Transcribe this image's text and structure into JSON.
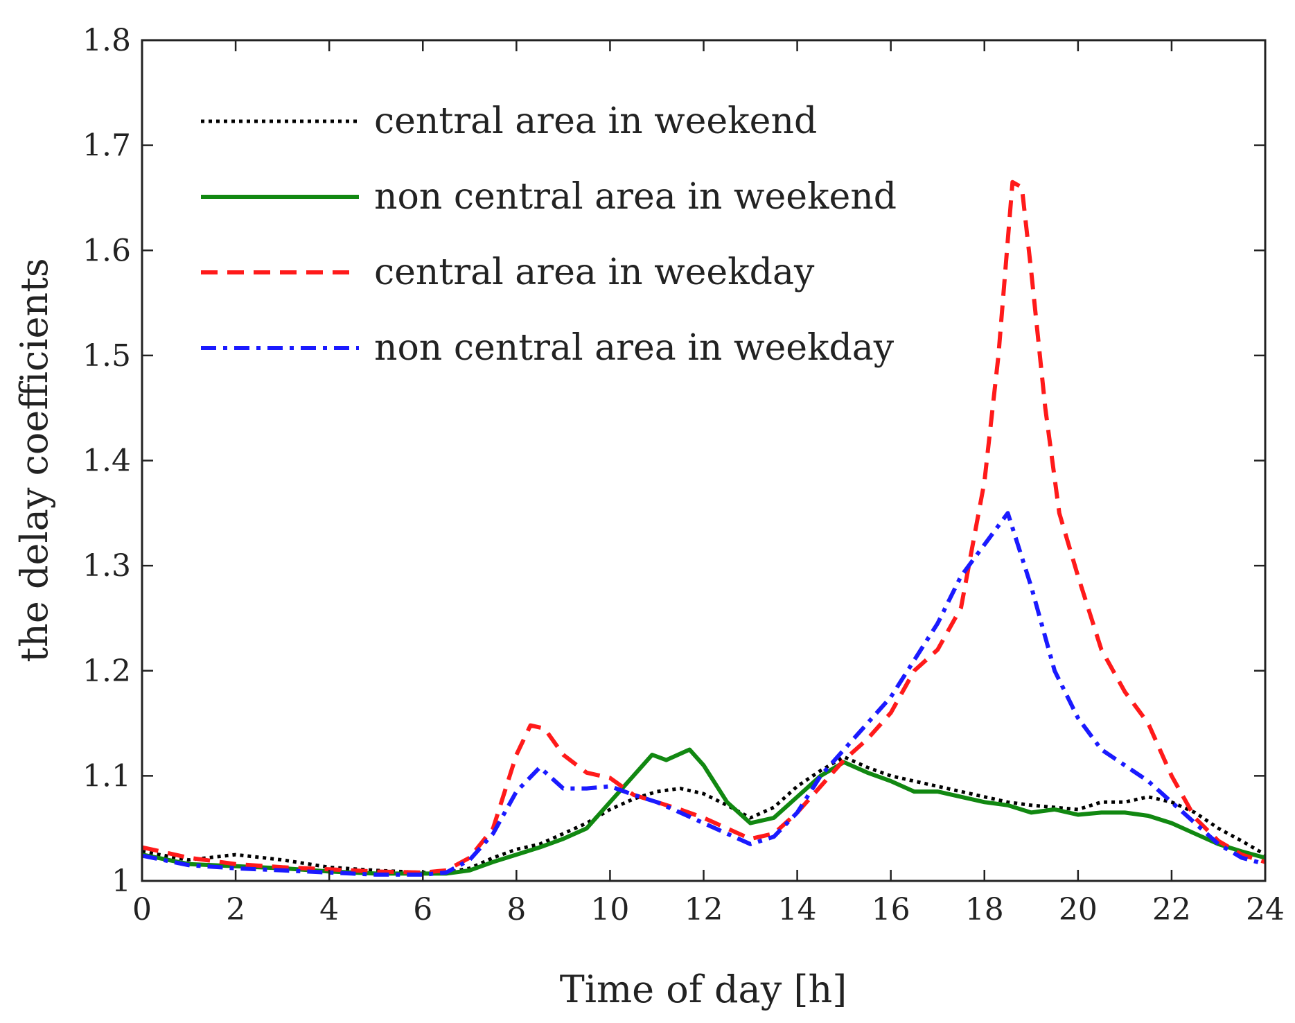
{
  "chart_data": {
    "type": "line",
    "title": "",
    "xlabel": "Time of day [h]",
    "ylabel": "the delay coefficients",
    "xlim": [
      0,
      24
    ],
    "ylim": [
      1,
      1.8
    ],
    "xticks": [
      0,
      2,
      4,
      6,
      8,
      10,
      12,
      14,
      16,
      18,
      20,
      22,
      24
    ],
    "yticks": [
      1,
      1.1,
      1.2,
      1.3,
      1.4,
      1.5,
      1.6,
      1.7,
      1.8
    ],
    "xtick_labels": [
      "0",
      "2",
      "4",
      "6",
      "8",
      "10",
      "12",
      "14",
      "16",
      "18",
      "20",
      "22",
      "24"
    ],
    "ytick_labels": [
      "1",
      "1.1",
      "1.2",
      "1.3",
      "1.4",
      "1.5",
      "1.6",
      "1.7",
      "1.8"
    ],
    "grid": false,
    "legend_position": "top-left",
    "series": [
      {
        "name": "central area in weekend",
        "color": "#000000",
        "style": "dotted",
        "x": [
          0,
          1,
          2,
          3,
          4,
          5,
          6,
          6.5,
          7,
          7.5,
          8,
          8.5,
          9,
          9.5,
          10,
          10.5,
          11,
          11.5,
          12,
          12.5,
          13,
          13.5,
          14,
          14.5,
          15,
          15.5,
          16,
          16.5,
          17,
          17.5,
          18,
          18.5,
          19,
          19.5,
          20,
          20.5,
          21,
          21.5,
          22,
          22.5,
          23,
          23.5,
          24
        ],
        "y": [
          1.028,
          1.02,
          1.025,
          1.02,
          1.013,
          1.01,
          1.008,
          1.008,
          1.012,
          1.022,
          1.03,
          1.035,
          1.045,
          1.055,
          1.068,
          1.078,
          1.085,
          1.088,
          1.083,
          1.072,
          1.06,
          1.07,
          1.09,
          1.105,
          1.118,
          1.108,
          1.1,
          1.095,
          1.09,
          1.085,
          1.08,
          1.075,
          1.072,
          1.07,
          1.068,
          1.075,
          1.075,
          1.08,
          1.075,
          1.065,
          1.05,
          1.038,
          1.025
        ]
      },
      {
        "name": "non central area in weekend",
        "color": "#118811",
        "style": "solid",
        "x": [
          0,
          1,
          2,
          3,
          4,
          5,
          6,
          6.5,
          7,
          7.5,
          8,
          8.5,
          9,
          9.5,
          10,
          10.5,
          10.9,
          11.2,
          11.7,
          12,
          12.5,
          13,
          13.5,
          14,
          14.5,
          15,
          15.5,
          16,
          16.5,
          17,
          17.5,
          18,
          18.5,
          19,
          19.5,
          20,
          20.5,
          21,
          21.5,
          22,
          22.5,
          23,
          23.5,
          24
        ],
        "y": [
          1.025,
          1.016,
          1.014,
          1.012,
          1.009,
          1.007,
          1.007,
          1.007,
          1.01,
          1.018,
          1.025,
          1.032,
          1.04,
          1.05,
          1.075,
          1.1,
          1.12,
          1.115,
          1.125,
          1.11,
          1.075,
          1.055,
          1.06,
          1.08,
          1.1,
          1.113,
          1.103,
          1.095,
          1.085,
          1.085,
          1.08,
          1.075,
          1.072,
          1.065,
          1.068,
          1.063,
          1.065,
          1.065,
          1.062,
          1.055,
          1.045,
          1.035,
          1.028,
          1.022
        ]
      },
      {
        "name": "central area in weekday",
        "color": "#ff1a1a",
        "style": "dashed",
        "x": [
          0,
          1,
          2,
          3,
          4,
          5,
          6,
          6.5,
          7,
          7.5,
          8,
          8.3,
          8.6,
          9,
          9.5,
          10,
          10.5,
          11,
          11.5,
          12,
          12.5,
          13,
          13.5,
          14,
          14.5,
          15,
          15.5,
          16,
          16.5,
          17,
          17.5,
          18,
          18.3,
          18.6,
          18.8,
          19,
          19.3,
          19.6,
          20,
          20.5,
          21,
          21.5,
          22,
          22.5,
          23,
          23.5,
          24
        ],
        "y": [
          1.032,
          1.022,
          1.016,
          1.013,
          1.011,
          1.009,
          1.008,
          1.01,
          1.022,
          1.05,
          1.12,
          1.148,
          1.145,
          1.12,
          1.103,
          1.098,
          1.082,
          1.075,
          1.068,
          1.06,
          1.05,
          1.04,
          1.045,
          1.065,
          1.09,
          1.115,
          1.135,
          1.16,
          1.2,
          1.22,
          1.26,
          1.38,
          1.5,
          1.665,
          1.66,
          1.58,
          1.45,
          1.35,
          1.29,
          1.22,
          1.18,
          1.15,
          1.1,
          1.06,
          1.038,
          1.025,
          1.018
        ]
      },
      {
        "name": "non central area in weekday",
        "color": "#1a1aff",
        "style": "dashdot",
        "x": [
          0,
          1,
          2,
          3,
          4,
          5,
          6,
          6.5,
          7,
          7.5,
          8,
          8.5,
          9,
          9.5,
          10,
          10.5,
          11,
          11.5,
          12,
          12.5,
          13,
          13.5,
          14,
          14.5,
          15,
          15.5,
          16,
          16.5,
          17,
          17.5,
          18,
          18.5,
          19,
          19.5,
          20,
          20.5,
          21,
          21.5,
          22,
          22.5,
          23,
          23.5,
          24
        ],
        "y": [
          1.024,
          1.015,
          1.012,
          1.01,
          1.008,
          1.006,
          1.006,
          1.008,
          1.02,
          1.045,
          1.085,
          1.108,
          1.088,
          1.088,
          1.09,
          1.082,
          1.075,
          1.065,
          1.055,
          1.045,
          1.035,
          1.042,
          1.065,
          1.1,
          1.125,
          1.15,
          1.175,
          1.21,
          1.245,
          1.29,
          1.32,
          1.35,
          1.28,
          1.2,
          1.155,
          1.125,
          1.11,
          1.095,
          1.075,
          1.055,
          1.035,
          1.022,
          1.016
        ]
      }
    ]
  }
}
